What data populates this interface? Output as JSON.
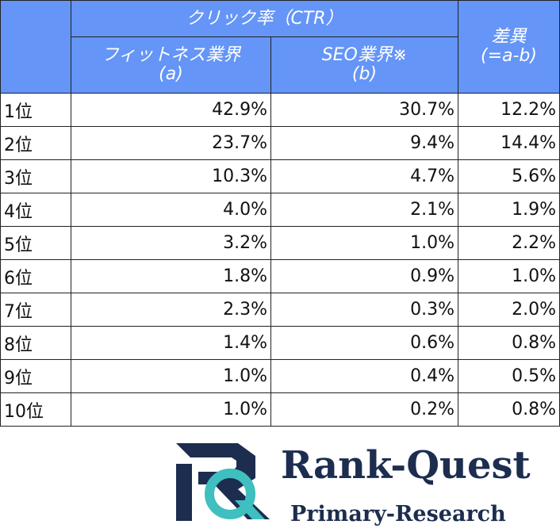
{
  "table": {
    "group_header": "クリック率（CTR）",
    "columns": [
      {
        "label": "フィットネス業界",
        "sub": "(a)"
      },
      {
        "label": "SEO業界※",
        "sub": "(b)"
      },
      {
        "label": "差異",
        "sub": "(=a-b)"
      }
    ],
    "rows": [
      [
        "1位",
        "42.9%",
        "30.7%",
        "12.2%"
      ],
      [
        "2位",
        "23.7%",
        "9.4%",
        "14.4%"
      ],
      [
        "3位",
        "10.3%",
        "4.7%",
        "5.6%"
      ],
      [
        "4位",
        "4.0%",
        "2.1%",
        "1.9%"
      ],
      [
        "5位",
        "3.2%",
        "1.0%",
        "2.2%"
      ],
      [
        "6位",
        "1.8%",
        "0.9%",
        "1.0%"
      ],
      [
        "7位",
        "2.3%",
        "0.3%",
        "2.0%"
      ],
      [
        "8位",
        "1.4%",
        "0.6%",
        "0.8%"
      ],
      [
        "9位",
        "1.0%",
        "0.4%",
        "0.5%"
      ],
      [
        "10位",
        "1.0%",
        "0.2%",
        "0.8%"
      ]
    ]
  },
  "logo": {
    "name": "Rank-Quest",
    "tagline": "Primary-Research"
  }
}
